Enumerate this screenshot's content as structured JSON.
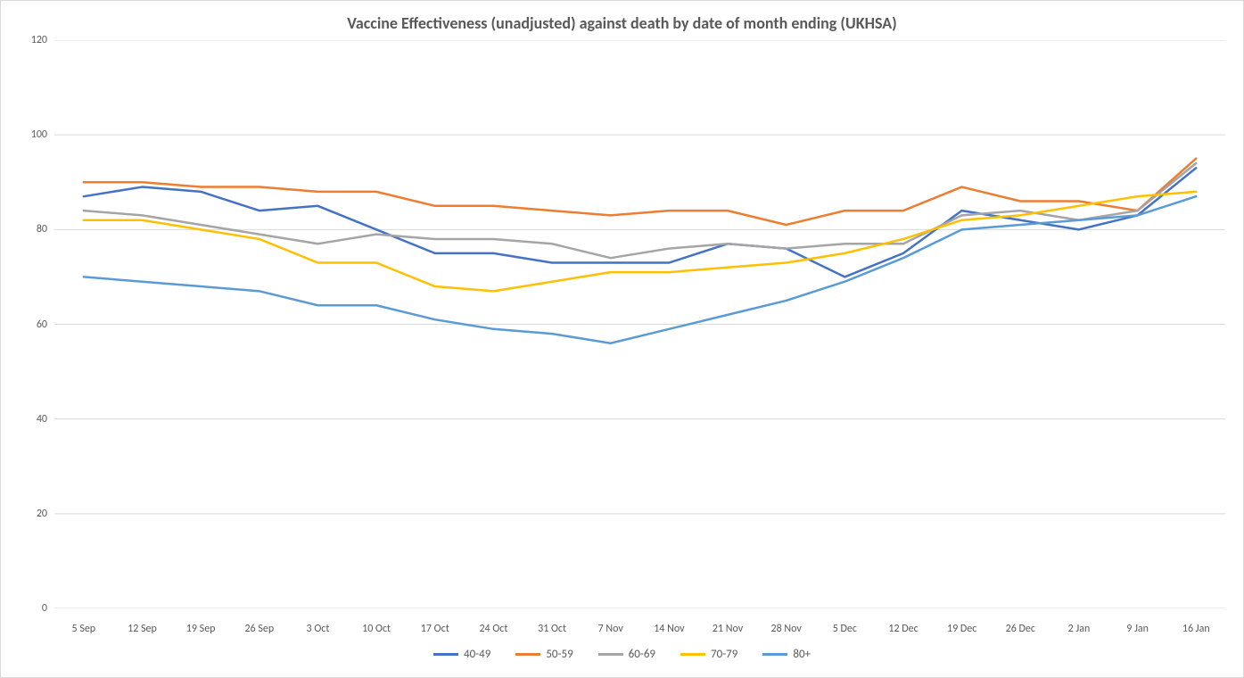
{
  "chart": {
    "type": "line",
    "title": "Vaccine Effectiveness (unadjusted) against death by date of month ending (UKHSA)",
    "title_fontsize": 18,
    "title_color": "#595959",
    "background_color": "#ffffff",
    "border_color": "#d9d9d9",
    "grid_color": "#d9d9d9",
    "axis_font_color": "#595959",
    "axis_fontsize": 12,
    "line_width": 2.5,
    "ylim": [
      0,
      120
    ],
    "ytick_step": 20,
    "yticks": [
      0,
      20,
      40,
      60,
      80,
      100,
      120
    ],
    "categories": [
      "5 Sep",
      "12 Sep",
      "19 Sep",
      "26 Sep",
      "3 Oct",
      "10 Oct",
      "17 Oct",
      "24 Oct",
      "31 Oct",
      "7 Nov",
      "14 Nov",
      "21 Nov",
      "28 Nov",
      "5 Dec",
      "12 Dec",
      "19 Dec",
      "26 Dec",
      "2 Jan",
      "9 Jan",
      "16 Jan"
    ],
    "series": [
      {
        "name": "40-49",
        "color": "#4472c4",
        "values": [
          87,
          89,
          88,
          84,
          85,
          80,
          75,
          75,
          73,
          73,
          73,
          77,
          76,
          70,
          75,
          84,
          82,
          80,
          83,
          93
        ]
      },
      {
        "name": "50-59",
        "color": "#ed7d31",
        "values": [
          90,
          90,
          89,
          89,
          88,
          88,
          85,
          85,
          84,
          83,
          84,
          84,
          81,
          84,
          84,
          89,
          86,
          86,
          84,
          95
        ]
      },
      {
        "name": "60-69",
        "color": "#a5a5a5",
        "values": [
          84,
          83,
          81,
          79,
          77,
          79,
          78,
          78,
          77,
          74,
          76,
          77,
          76,
          77,
          77,
          83,
          84,
          82,
          84,
          94
        ]
      },
      {
        "name": "70-79",
        "color": "#ffc000",
        "values": [
          82,
          82,
          80,
          78,
          73,
          73,
          68,
          67,
          69,
          71,
          71,
          72,
          73,
          75,
          78,
          82,
          83,
          85,
          87,
          88
        ]
      },
      {
        "name": "80+",
        "color": "#5b9bd5",
        "values": [
          70,
          69,
          68,
          67,
          64,
          64,
          61,
          59,
          58,
          56,
          59,
          62,
          65,
          69,
          74,
          80,
          81,
          82,
          83,
          87
        ]
      }
    ],
    "legend_position": "bottom"
  }
}
